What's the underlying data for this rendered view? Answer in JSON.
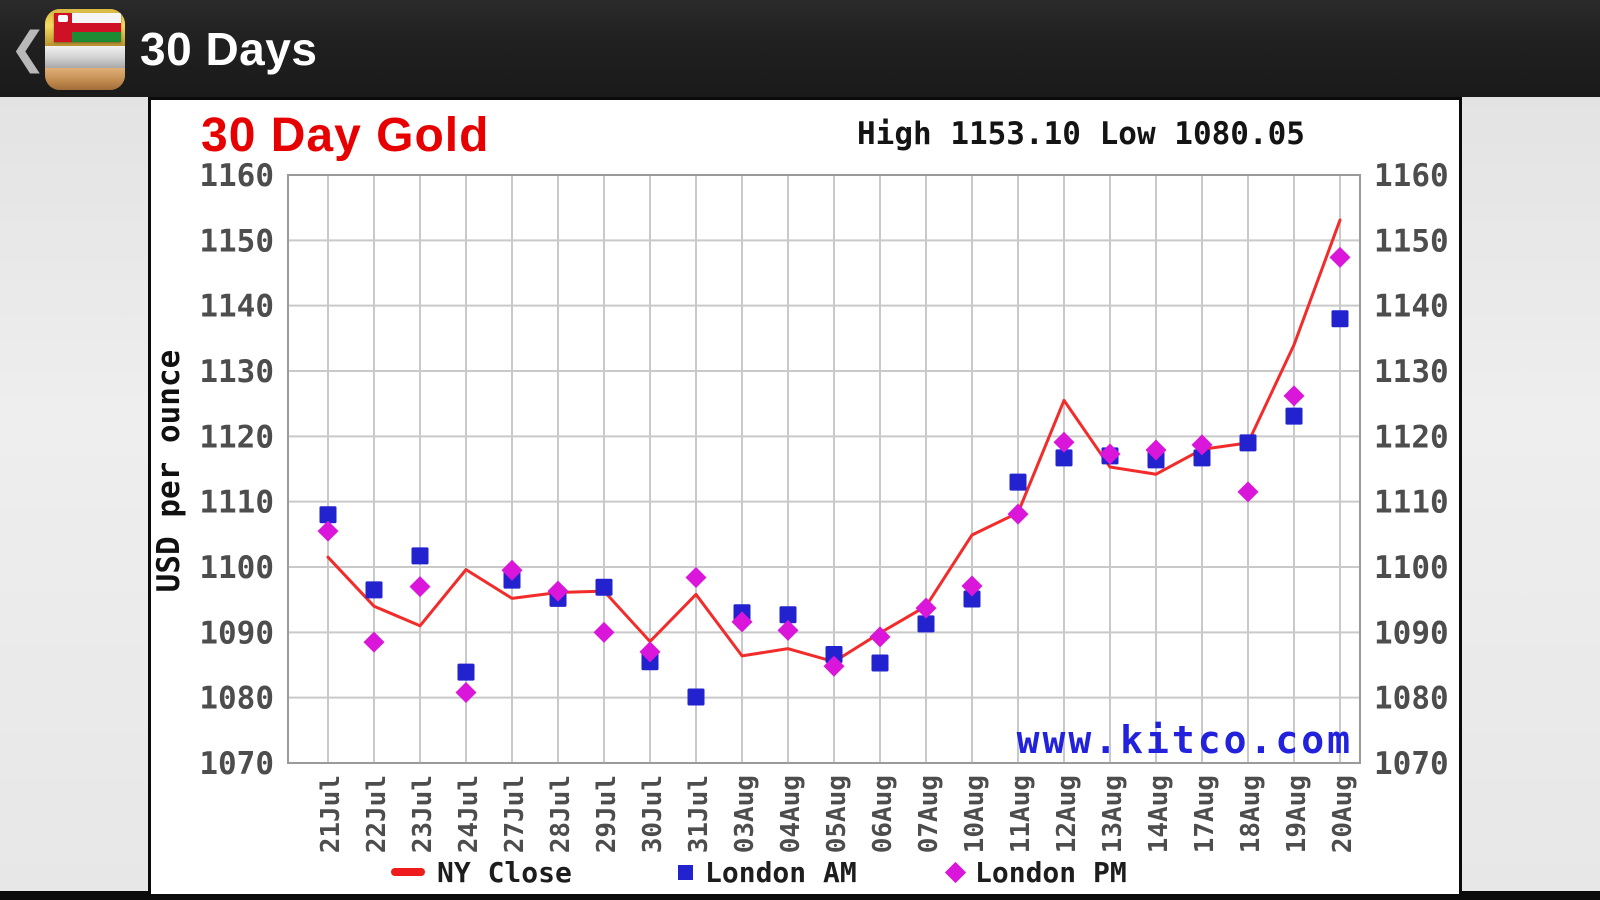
{
  "header": {
    "back_icon": "❮",
    "title": "30 Days",
    "app_icon": "gold-bars-with-oman-flag"
  },
  "chart": {
    "title": "30 Day Gold",
    "stats": "High 1153.10 Low 1080.05",
    "high_label": "High",
    "high_value": "1153.10",
    "low_label": "Low",
    "low_value": "1080.05",
    "y_axis_title": "USD per ounce",
    "watermark": "www.kitco.com",
    "colors": {
      "title_red": "#e60000",
      "line_red": "#f22b2b",
      "london_am_blue": "#2222cf",
      "london_pm_magenta": "#da16da",
      "watermark_blue": "#2222dd",
      "grid_gray": "#c9c9c9",
      "tick_gray": "#4d4d4d"
    }
  },
  "chart_data": {
    "type": "line",
    "title": "30 Day Gold",
    "ylabel": "USD per ounce",
    "xlabel": "",
    "grid": true,
    "legend_position": "bottom",
    "ylim": [
      1070,
      1160
    ],
    "yticks": [
      1160,
      1150,
      1140,
      1130,
      1120,
      1110,
      1100,
      1090,
      1080,
      1070
    ],
    "high": 1153.1,
    "low": 1080.05,
    "categories": [
      "21Jul",
      "22Jul",
      "23Jul",
      "24Jul",
      "27Jul",
      "28Jul",
      "29Jul",
      "30Jul",
      "31Jul",
      "03Aug",
      "04Aug",
      "05Aug",
      "06Aug",
      "07Aug",
      "10Aug",
      "11Aug",
      "12Aug",
      "13Aug",
      "14Aug",
      "17Aug",
      "18Aug",
      "19Aug",
      "20Aug"
    ],
    "series": [
      {
        "name": "NY Close",
        "style": "line",
        "color": "#f22b2b",
        "values": [
          1101.5,
          1094.0,
          1091.0,
          1099.6,
          1095.2,
          1096.1,
          1096.3,
          1088.6,
          1095.8,
          1086.4,
          1087.5,
          1085.5,
          1089.9,
          1094.0,
          1104.9,
          1108.3,
          1125.5,
          1115.3,
          1114.2,
          1118.0,
          1119.0,
          1134.0,
          1153.1
        ]
      },
      {
        "name": "London AM",
        "style": "square",
        "color": "#2222cf",
        "values": [
          1108.0,
          1096.5,
          1101.7,
          1083.9,
          1098.0,
          1095.2,
          1096.9,
          1085.5,
          1080.1,
          1093.0,
          1092.7,
          1086.6,
          1085.3,
          1091.3,
          1095.1,
          1113.0,
          1116.7,
          1117.0,
          1116.4,
          1116.7,
          1119.0,
          1123.1,
          1138.0
        ]
      },
      {
        "name": "London PM",
        "style": "diamond",
        "color": "#da16da",
        "values": [
          1105.5,
          1088.5,
          1097.0,
          1080.8,
          1099.5,
          1096.3,
          1090.0,
          1087.0,
          1098.4,
          1091.6,
          1090.3,
          1084.8,
          1089.3,
          1093.7,
          1097.1,
          1108.1,
          1119.1,
          1117.3,
          1117.9,
          1118.7,
          1111.5,
          1126.2,
          1147.4
        ]
      }
    ]
  }
}
